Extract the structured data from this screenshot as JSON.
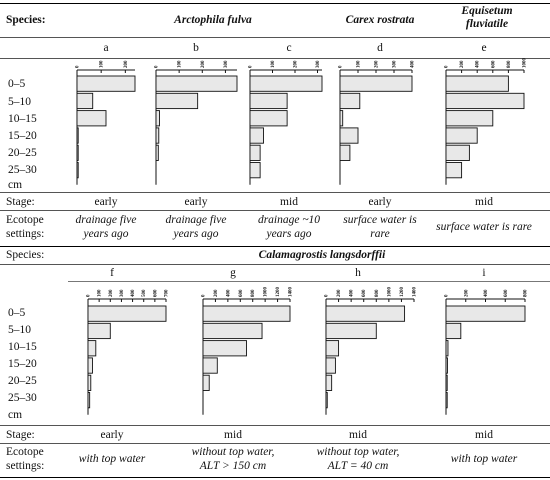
{
  "species_label": "Species:",
  "top": {
    "species_names": [
      "Arctophila fulva",
      "Carex rostrata",
      "Equisetum fluviatile"
    ],
    "panel_letters": [
      "a",
      "b",
      "c",
      "d",
      "e"
    ],
    "stage_label": "Stage:",
    "stages": [
      "early",
      "early",
      "mid",
      "early",
      "mid"
    ],
    "ecotope_label": [
      "Ecotope",
      "settings:"
    ],
    "ecotopes": [
      [
        "drainage five",
        "years ago"
      ],
      [
        "drainage five",
        "years ago"
      ],
      [
        "drainage ~10",
        "years ago"
      ],
      [
        "surface water is",
        "rare"
      ],
      [
        "surface water is rare"
      ]
    ]
  },
  "bottom": {
    "species_names": [
      "Calamagrostis langsdorffii"
    ],
    "panel_letters": [
      "f",
      "g",
      "h",
      "i"
    ],
    "stage_label": "Stage:",
    "stages": [
      "early",
      "mid",
      "mid",
      "mid"
    ],
    "ecotope_label": [
      "Ecotope",
      "settings:"
    ],
    "ecotopes": [
      [
        "with top water"
      ],
      [
        "without top water,",
        "ALT > 150 cm"
      ],
      [
        "without top water,",
        "ALT = 40 cm"
      ],
      [
        "with top water"
      ]
    ]
  },
  "depth_labels": [
    "0–5",
    "5–10",
    "10–15",
    "15–20",
    "20–25",
    "25–30",
    "cm"
  ],
  "chart_data": [
    {
      "type": "bar",
      "panel": "a",
      "orientation": "horizontal",
      "categories": [
        "0–5",
        "5–10",
        "10–15",
        "15–20",
        "20–25",
        "25–30"
      ],
      "values": [
        240,
        65,
        120,
        4,
        3,
        2
      ],
      "ticks": [
        "0",
        "100",
        "200"
      ],
      "xlim": [
        0,
        240
      ]
    },
    {
      "type": "bar",
      "panel": "b",
      "orientation": "horizontal",
      "categories": [
        "0–5",
        "5–10",
        "10–15",
        "15–20",
        "20–25",
        "25–30"
      ],
      "values": [
        350,
        180,
        15,
        12,
        10,
        0
      ],
      "ticks": [
        "0",
        "100",
        "200",
        "300"
      ],
      "xlim": [
        0,
        350
      ]
    },
    {
      "type": "bar",
      "panel": "c",
      "orientation": "horizontal",
      "categories": [
        "0–5",
        "5–10",
        "10–15",
        "15–20",
        "20–25",
        "25–30"
      ],
      "values": [
        320,
        165,
        165,
        60,
        45,
        45
      ],
      "ticks": [
        "0",
        "100",
        "200",
        "300"
      ],
      "xlim": [
        0,
        320
      ]
    },
    {
      "type": "bar",
      "panel": "d",
      "orientation": "horizontal",
      "categories": [
        "0–5",
        "5–10",
        "10–15",
        "15–20",
        "20–25",
        "25–30"
      ],
      "values": [
        400,
        110,
        15,
        100,
        55,
        0
      ],
      "ticks": [
        "0",
        "100",
        "200",
        "300",
        "400"
      ],
      "xlim": [
        0,
        400
      ]
    },
    {
      "type": "bar",
      "panel": "e",
      "orientation": "horizontal",
      "categories": [
        "0–5",
        "5–10",
        "10–15",
        "15–20",
        "20–25",
        "25–30"
      ],
      "values": [
        800,
        1000,
        600,
        400,
        300,
        200
      ],
      "ticks": [
        "0",
        "200",
        "400",
        "600",
        "800",
        "1000"
      ],
      "xlim": [
        0,
        1000
      ]
    },
    {
      "type": "bar",
      "panel": "f",
      "orientation": "horizontal",
      "categories": [
        "0–5",
        "5–10",
        "10–15",
        "15–20",
        "20–25",
        "25–30"
      ],
      "values": [
        700,
        200,
        70,
        40,
        25,
        15
      ],
      "ticks": [
        "0",
        "100",
        "200",
        "300",
        "400",
        "500",
        "600",
        "700"
      ],
      "xlim": [
        0,
        700
      ]
    },
    {
      "type": "bar",
      "panel": "g",
      "orientation": "horizontal",
      "categories": [
        "0–5",
        "5–10",
        "10–15",
        "15–20",
        "20–25",
        "25–30"
      ],
      "values": [
        1400,
        950,
        700,
        230,
        100,
        0
      ],
      "ticks": [
        "0",
        "200",
        "400",
        "600",
        "800",
        "1000",
        "1200",
        "1400"
      ],
      "xlim": [
        0,
        1400
      ]
    },
    {
      "type": "bar",
      "panel": "h",
      "orientation": "horizontal",
      "categories": [
        "0–5",
        "5–10",
        "10–15",
        "15–20",
        "20–25",
        "25–30"
      ],
      "values": [
        1250,
        800,
        200,
        150,
        90,
        20
      ],
      "ticks": [
        "0",
        "200",
        "400",
        "600",
        "800",
        "1000",
        "1200",
        "1400"
      ],
      "xlim": [
        0,
        1400
      ]
    },
    {
      "type": "bar",
      "panel": "i",
      "orientation": "horizontal",
      "categories": [
        "0–5",
        "5–10",
        "10–15",
        "15–20",
        "20–25",
        "25–30"
      ],
      "values": [
        800,
        150,
        20,
        15,
        10,
        5
      ],
      "ticks": [
        "0",
        "200",
        "400",
        "600",
        "800"
      ],
      "xlim": [
        0,
        800
      ]
    }
  ]
}
